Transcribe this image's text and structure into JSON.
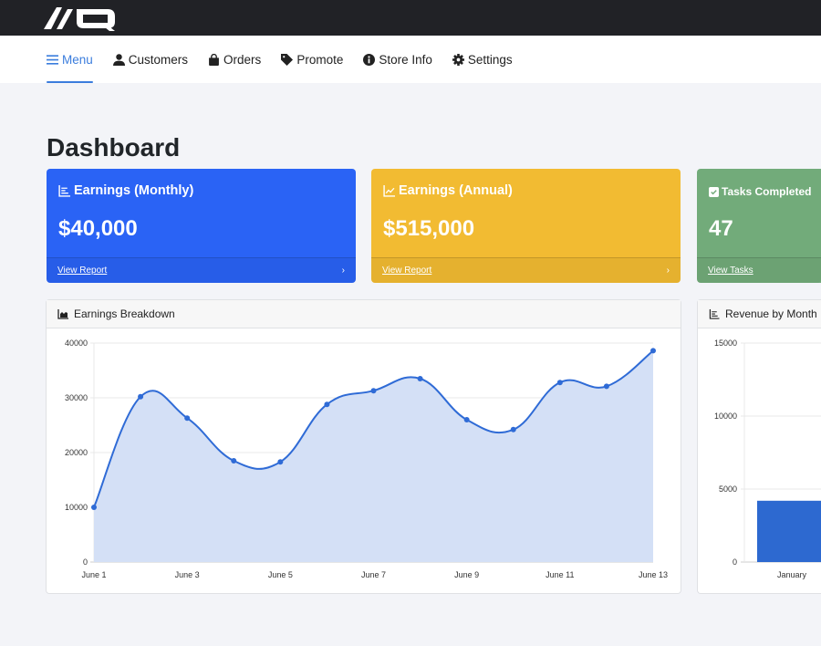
{
  "logo_text": "AIQ",
  "nav": [
    {
      "label": "Menu",
      "icon": "bars-icon",
      "active": true
    },
    {
      "label": "Customers",
      "icon": "user-icon"
    },
    {
      "label": "Orders",
      "icon": "shopping-bag-icon"
    },
    {
      "label": "Promote",
      "icon": "tag-icon"
    },
    {
      "label": "Store Info",
      "icon": "info-circle-icon"
    },
    {
      "label": "Settings",
      "icon": "gear-icon"
    }
  ],
  "page_title": "Dashboard",
  "stats": [
    {
      "title": "Earnings (Monthly)",
      "value": "$40,000",
      "link": "View Report",
      "color": "#2a63f5",
      "icon": "bar-chart-icon"
    },
    {
      "title": "Earnings (Annual)",
      "value": "$515,000",
      "link": "View Report",
      "color": "#f2bb32",
      "icon": "line-chart-icon"
    },
    {
      "title": "Tasks Completed",
      "value": "47",
      "link": "View Tasks",
      "color": "#72ab7a",
      "icon": "check-square-icon"
    }
  ],
  "chart_data": [
    {
      "type": "area",
      "title": "Earnings Breakdown",
      "x": [
        "June 1",
        "June 2",
        "June 3",
        "June 4",
        "June 5",
        "June 6",
        "June 7",
        "June 8",
        "June 9",
        "June 10",
        "June 11",
        "June 12",
        "June 13"
      ],
      "x_tick_labels": [
        "June 1",
        "June 3",
        "June 5",
        "June 7",
        "June 9",
        "June 11",
        "June 13"
      ],
      "values": [
        10000,
        30200,
        26300,
        18500,
        18300,
        28800,
        31300,
        33500,
        26000,
        24200,
        32800,
        32100,
        38600
      ],
      "ylim": [
        0,
        40000
      ],
      "y_ticks": [
        "0",
        "10000",
        "20000",
        "30000",
        "40000"
      ],
      "grid": true,
      "color": "#2f6bd6",
      "fill": "#d4e0f6"
    },
    {
      "type": "bar",
      "title": "Revenue by Month",
      "categories": [
        "January"
      ],
      "values": [
        4200
      ],
      "ylim": [
        0,
        15000
      ],
      "y_ticks": [
        "0",
        "5000",
        "10000",
        "15000"
      ],
      "grid": true,
      "color": "#2d69d0"
    }
  ]
}
